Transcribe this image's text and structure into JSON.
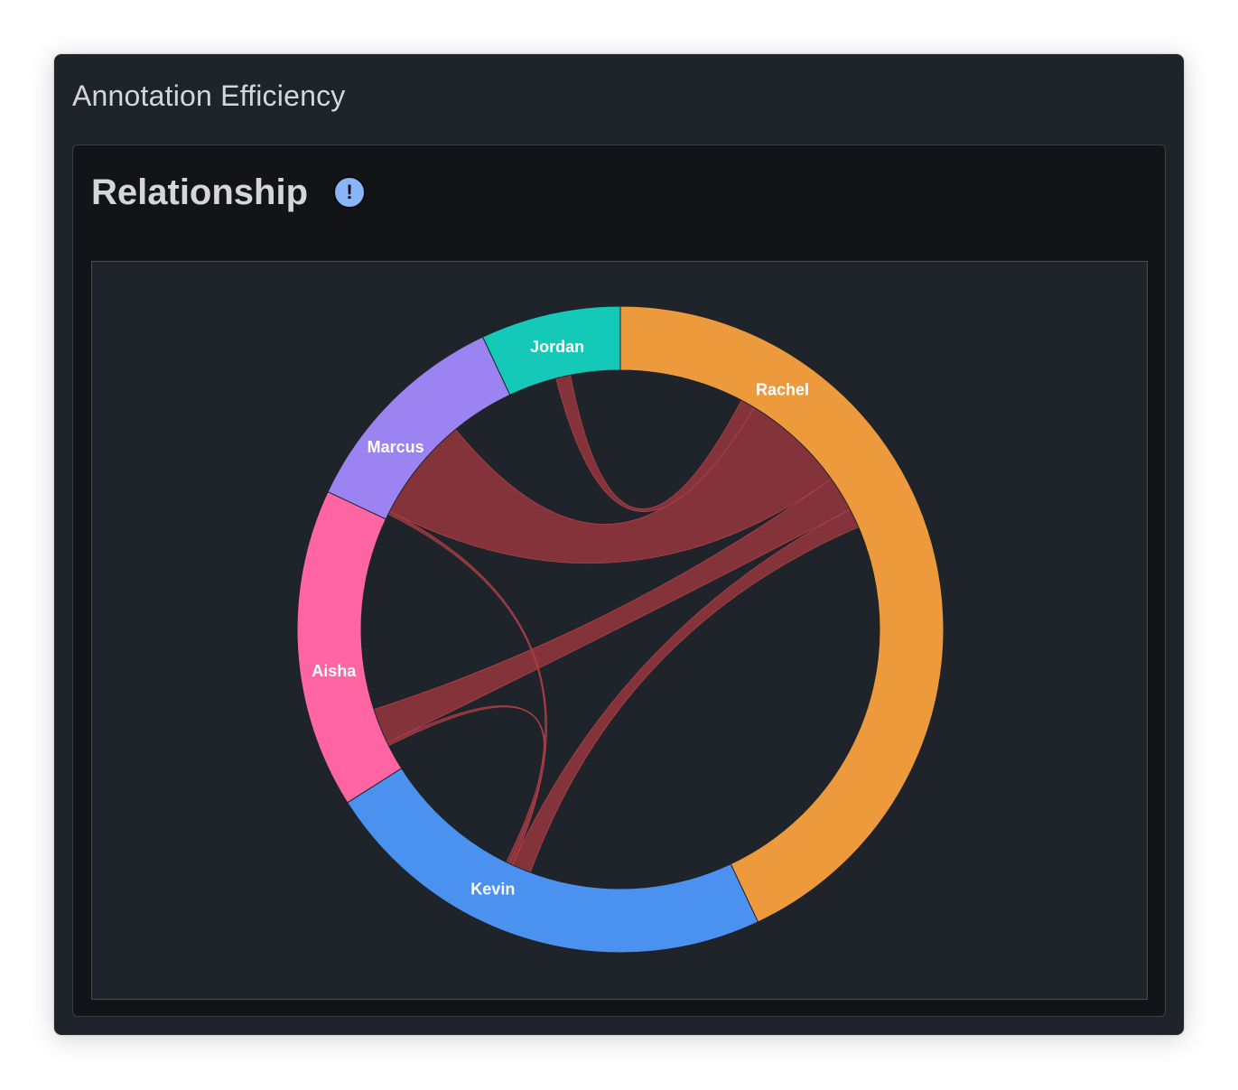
{
  "panel": {
    "title": "Annotation Efficiency"
  },
  "card": {
    "title": "Relationship",
    "info_icon": "info-icon",
    "info_glyph": "!"
  },
  "chart_data": {
    "type": "chord",
    "nodes": [
      {
        "name": "Rachel",
        "value": 43,
        "color": "#ed9a3d"
      },
      {
        "name": "Kevin",
        "value": 23,
        "color": "#4b91f0"
      },
      {
        "name": "Aisha",
        "value": 16,
        "color": "#ff65a3"
      },
      {
        "name": "Marcus",
        "value": 11,
        "color": "#9b84f2"
      },
      {
        "name": "Jordan",
        "value": 7,
        "color": "#15c9b8"
      }
    ],
    "links": [
      {
        "source": "Marcus",
        "target": "Rachel",
        "value": 6.5
      },
      {
        "source": "Aisha",
        "target": "Rachel",
        "value": 2.2
      },
      {
        "source": "Kevin",
        "target": "Rachel",
        "value": 1.2
      },
      {
        "source": "Jordan",
        "target": "Rachel",
        "value": 0.9
      },
      {
        "source": "Marcus",
        "target": "Kevin",
        "value": 0.2
      },
      {
        "source": "Aisha",
        "target": "Kevin",
        "value": 0.2
      }
    ],
    "link_color": "#8b353b"
  }
}
